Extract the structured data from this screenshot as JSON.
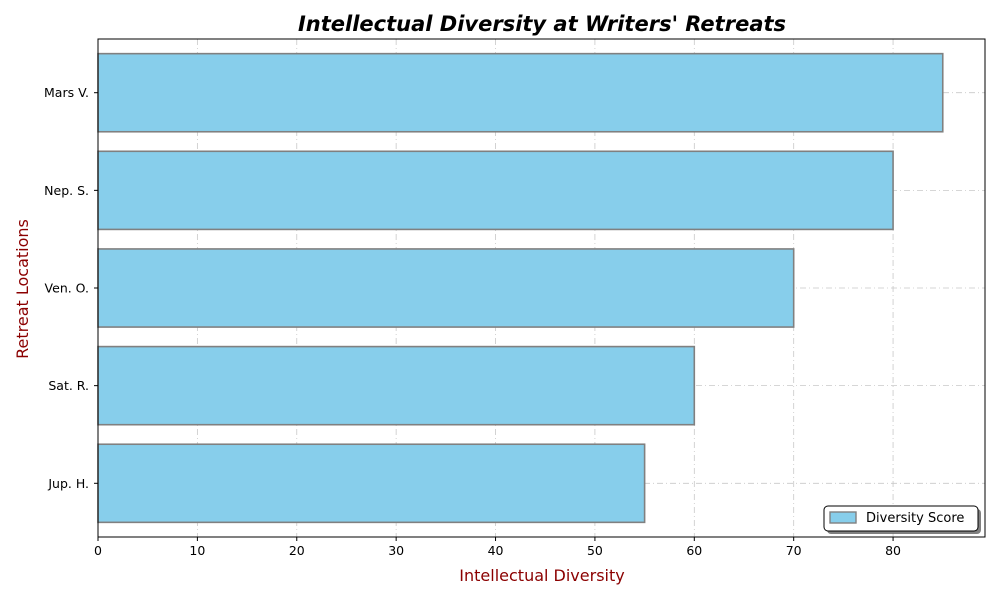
{
  "chart_data": {
    "type": "bar",
    "orientation": "horizontal",
    "title": "Intellectual Diversity at Writers' Retreats",
    "xlabel": "Intellectual Diversity",
    "ylabel": "Retreat Locations",
    "categories": [
      "Jup. H.",
      "Sat. R.",
      "Ven. O.",
      "Nep. S.",
      "Mars V."
    ],
    "series": [
      {
        "name": "Diversity Score",
        "values": [
          55,
          60,
          70,
          80,
          85
        ],
        "color": "#87ceeb",
        "edge_color": "#808080"
      }
    ],
    "xlim": [
      0,
      89.25
    ],
    "xticks": [
      0,
      10,
      20,
      30,
      40,
      50,
      60,
      70,
      80
    ],
    "grid": true,
    "grid_style": "dash-dot",
    "legend_position": "lower-right",
    "label_color": "#8b0000"
  }
}
